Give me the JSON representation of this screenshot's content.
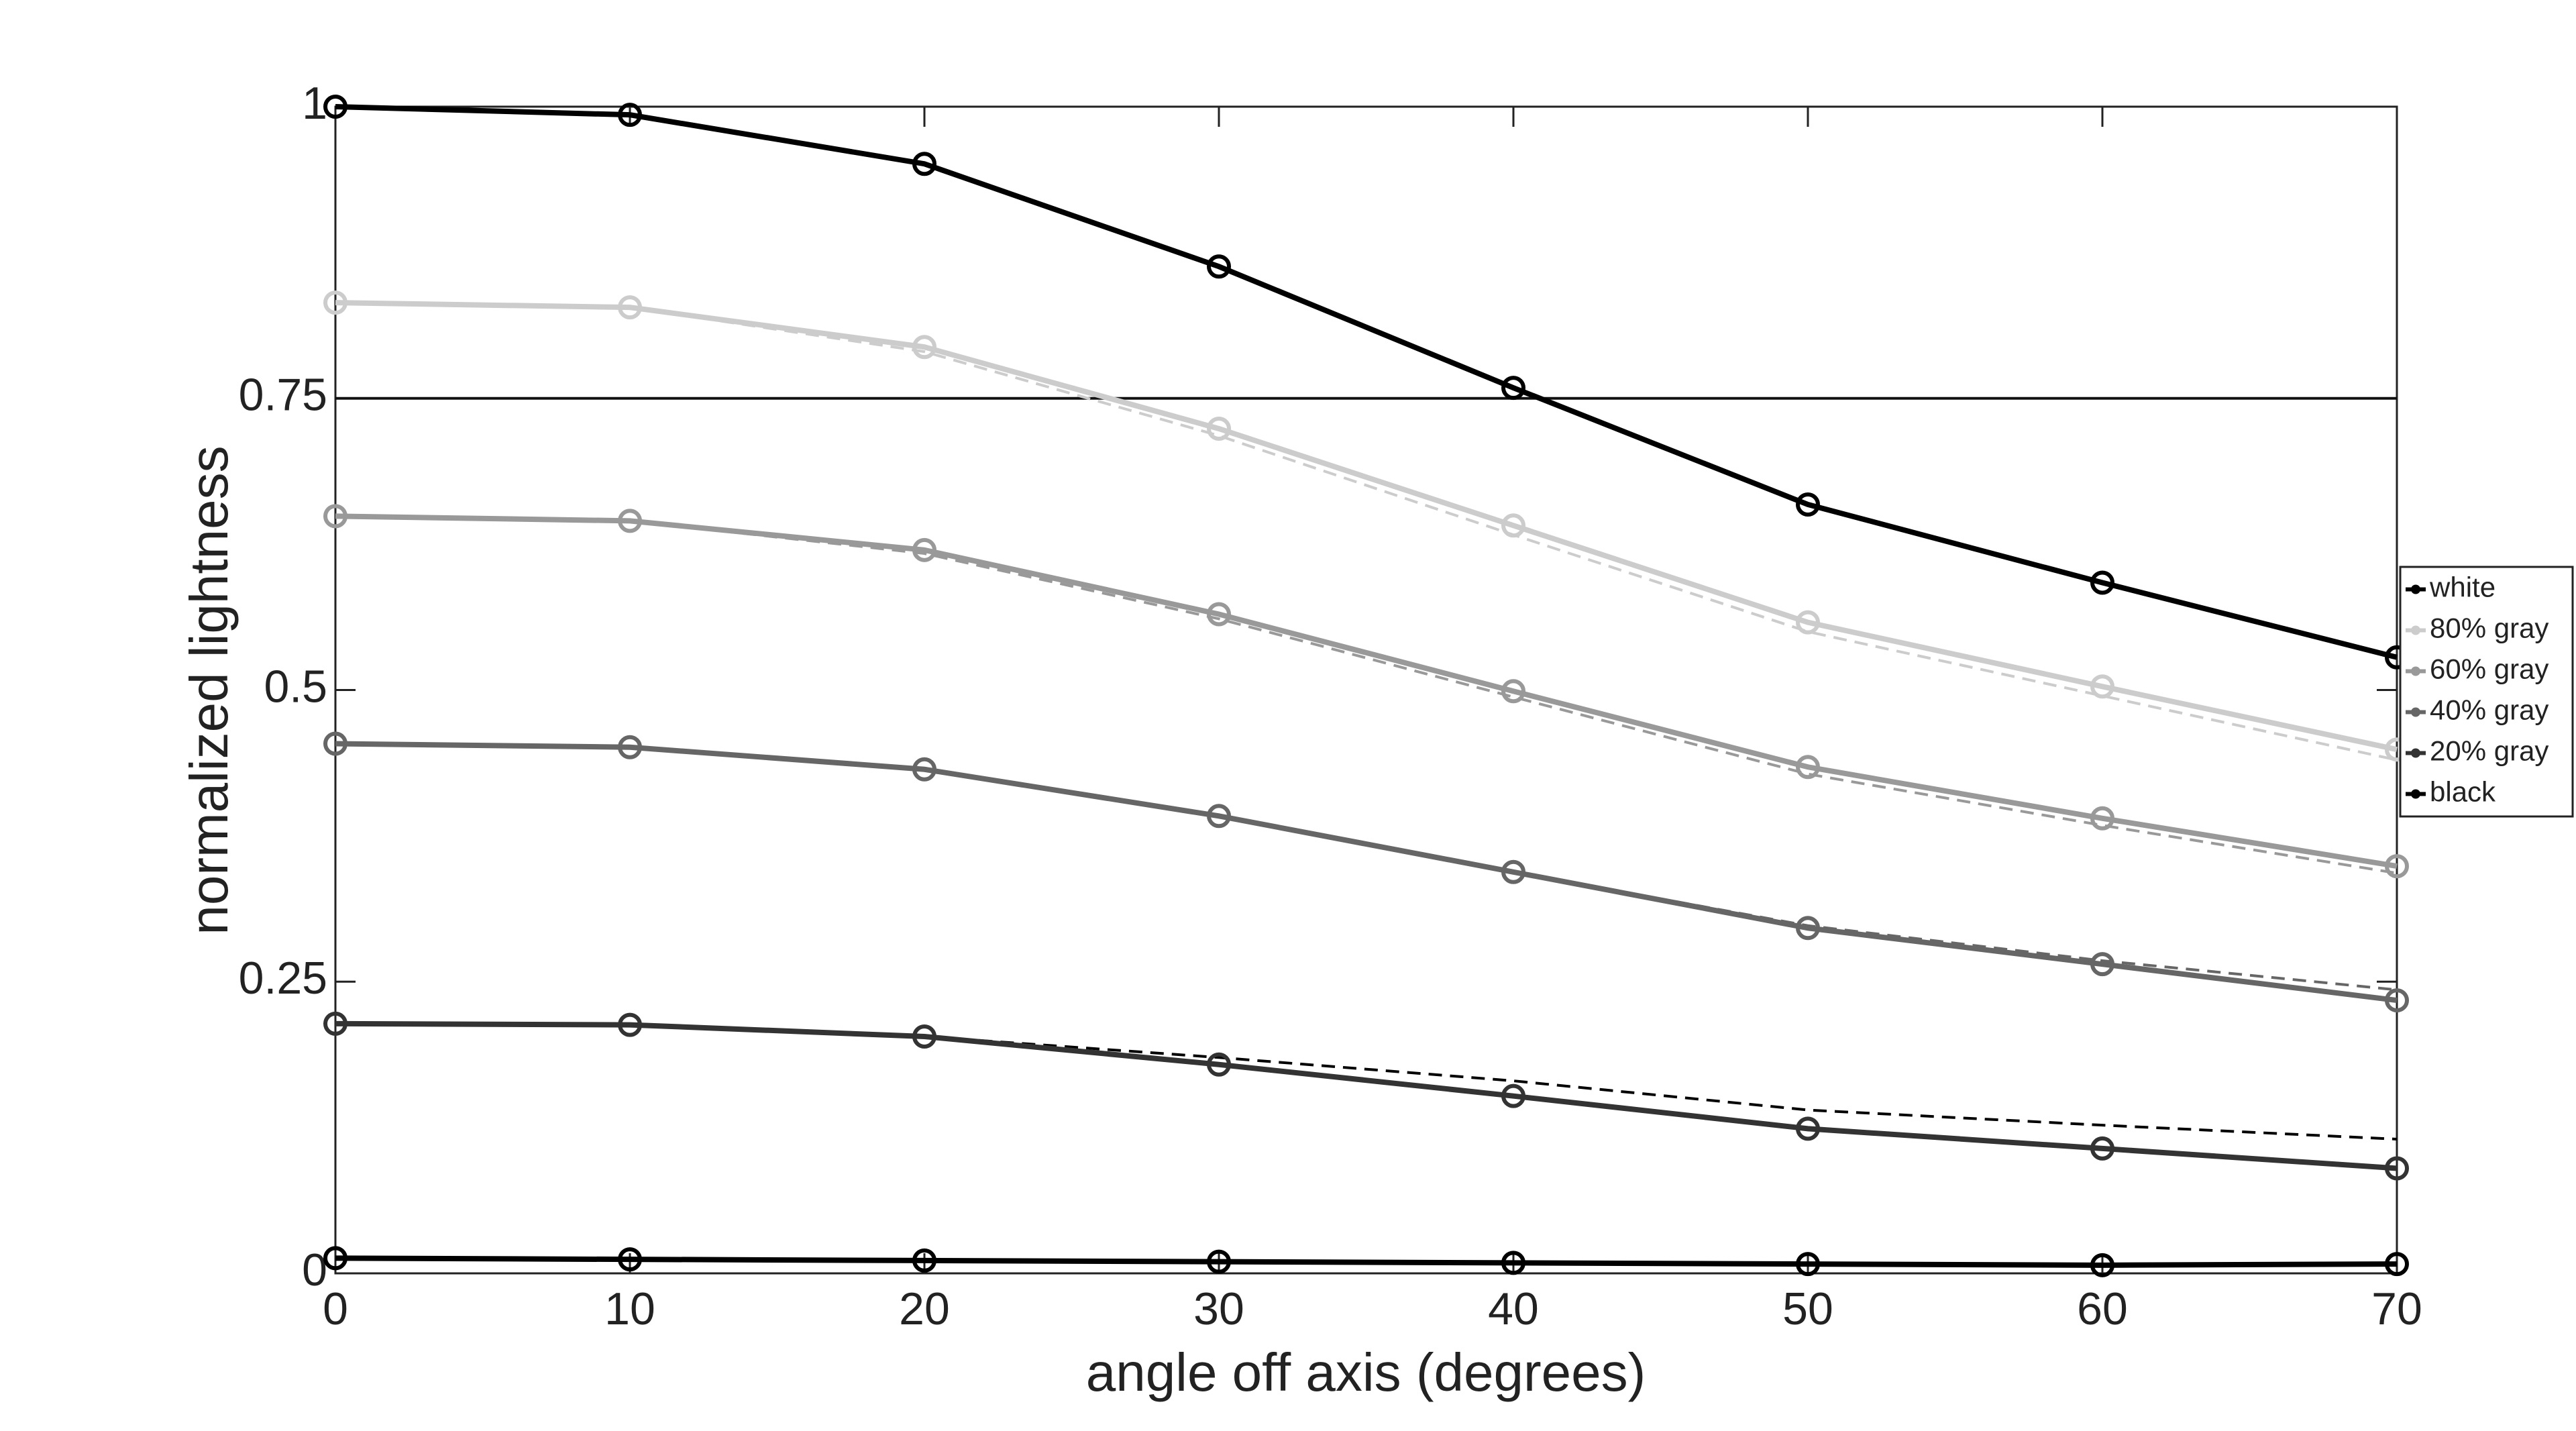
{
  "chart_data": {
    "type": "line",
    "x_label": "angle off axis (degrees)",
    "y_label": "normalized lightness",
    "x": [
      0,
      10,
      20,
      30,
      40,
      50,
      60,
      70
    ],
    "series": [
      {
        "name": "white",
        "color": "#000000",
        "values": [
          1,
          0.993,
          0.951,
          0.863,
          0.759,
          0.659,
          0.592,
          0.528
        ]
      },
      {
        "name": "80% gray",
        "color": "#cccccc",
        "values": [
          0.832,
          0.828,
          0.794,
          0.724,
          0.641,
          0.558,
          0.503,
          0.449
        ]
      },
      {
        "name": "60% gray",
        "color": "#999999",
        "values": [
          0.649,
          0.645,
          0.62,
          0.565,
          0.499,
          0.434,
          0.39,
          0.349
        ]
      },
      {
        "name": "40% gray",
        "color": "#666666",
        "values": [
          0.454,
          0.451,
          0.432,
          0.392,
          0.344,
          0.296,
          0.265,
          0.234
        ]
      },
      {
        "name": "20% gray",
        "color": "#333333",
        "values": [
          0.214,
          0.213,
          0.203,
          0.179,
          0.152,
          0.124,
          0.107,
          0.09
        ]
      },
      {
        "name": "black",
        "color": "#000000",
        "values": [
          0.013,
          0.012,
          0.011,
          0.01,
          0.009,
          0.008,
          0.007,
          0.008
        ]
      }
    ],
    "reference_lines": [
      {
        "color": "#cccccc",
        "values": [
          0.832,
          0.828,
          0.79,
          0.718,
          0.633,
          0.55,
          0.495,
          0.44
        ]
      },
      {
        "color": "#999999",
        "values": [
          0.649,
          0.645,
          0.617,
          0.561,
          0.494,
          0.428,
          0.384,
          0.343
        ]
      },
      {
        "color": "#666666",
        "values": [
          0.454,
          0.451,
          0.432,
          0.392,
          0.344,
          0.298,
          0.268,
          0.243
        ]
      },
      {
        "color": "#000000",
        "values": [
          0.214,
          0.213,
          0.203,
          0.185,
          0.165,
          0.14,
          0.127,
          0.115
        ]
      }
    ],
    "hline": 0.75,
    "xlim": [
      0,
      70
    ],
    "xticks": [
      0,
      10,
      20,
      30,
      40,
      50,
      60,
      70
    ],
    "ylim": [
      0,
      1
    ],
    "yticks": [
      0,
      0.25,
      0.5,
      0.75,
      1
    ],
    "legend": "right",
    "grid": false
  }
}
